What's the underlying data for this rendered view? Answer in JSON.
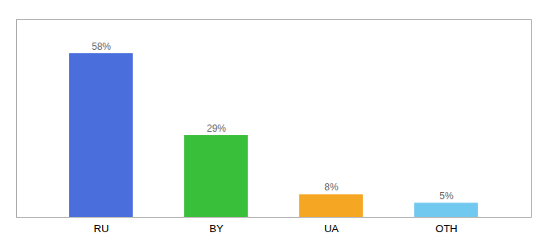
{
  "chart_data": {
    "type": "bar",
    "categories": [
      "RU",
      "BY",
      "UA",
      "OTH"
    ],
    "values": [
      58,
      29,
      8,
      5
    ],
    "value_labels": [
      "58%",
      "29%",
      "8%",
      "5%"
    ],
    "colors": [
      "#4a6fdc",
      "#3abf3a",
      "#f5a623",
      "#72c9f0"
    ],
    "ylim": [
      0,
      70
    ],
    "data_labels": true,
    "tick_labels": "x",
    "grid": false
  }
}
